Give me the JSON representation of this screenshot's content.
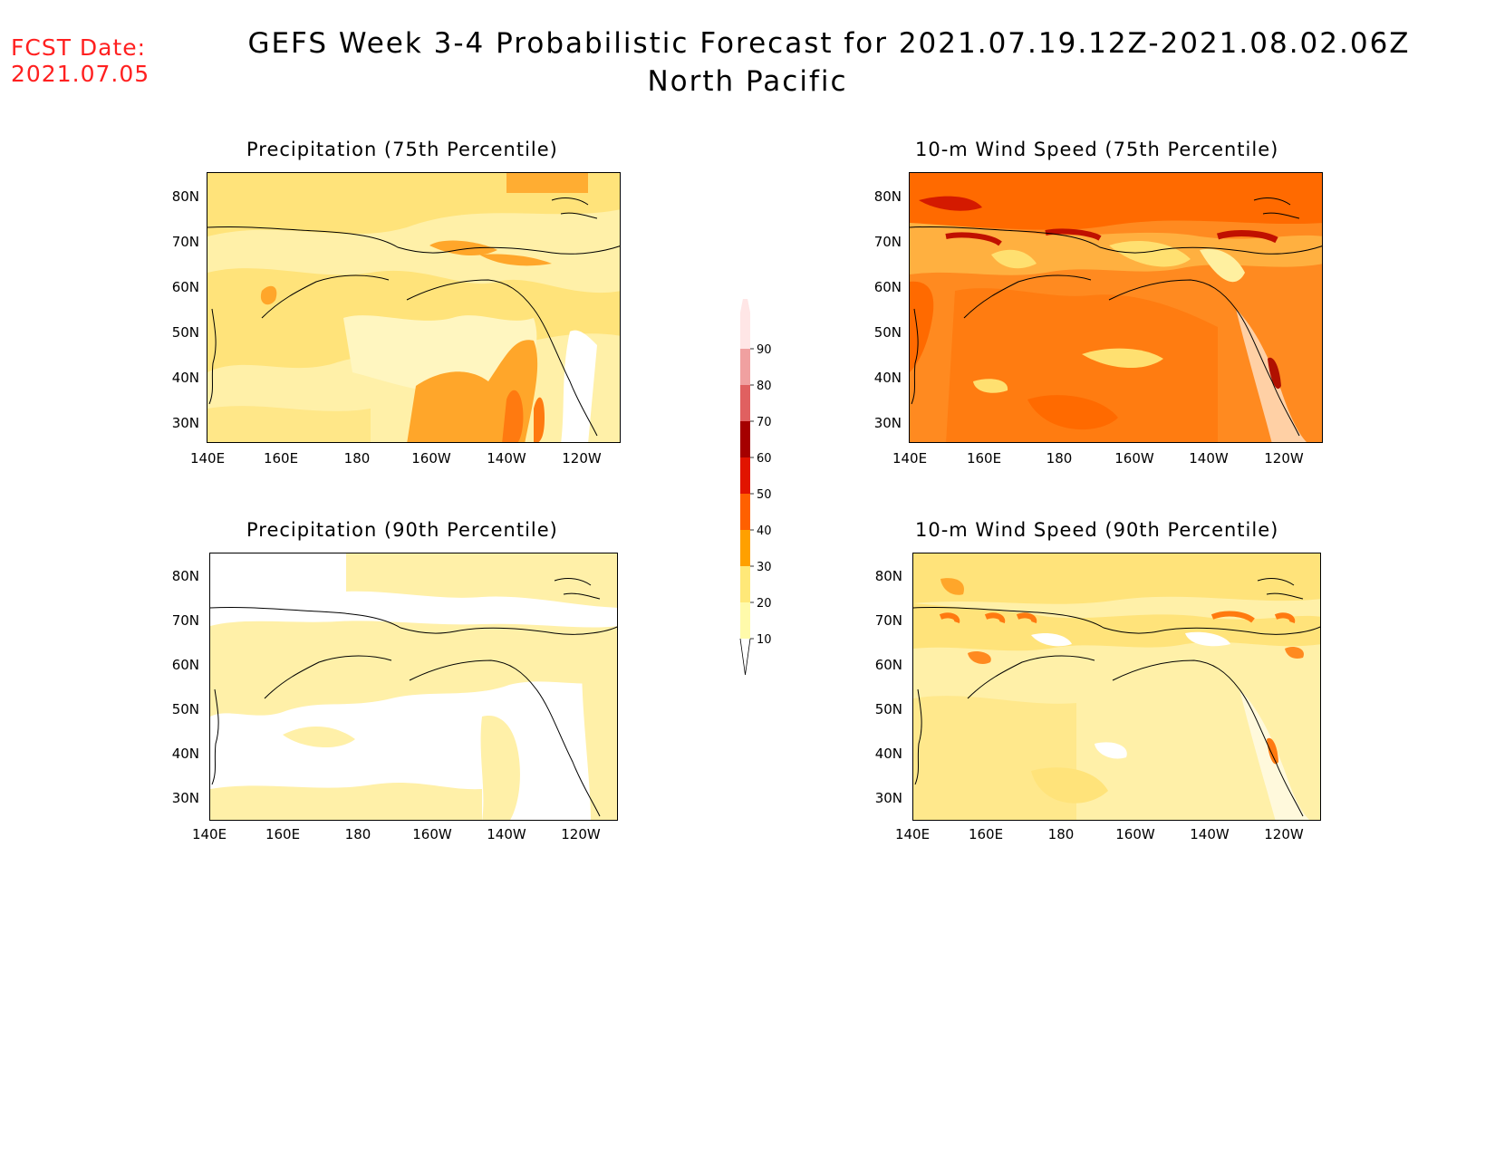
{
  "header": {
    "fcst_label": "FCST Date:",
    "fcst_date": "2021.07.05",
    "title": "GEFS Week 3-4 Probabilistic Forecast for 2021.07.19.12Z-2021.08.02.06Z",
    "subtitle": "North Pacific"
  },
  "axes": {
    "lat_labels": [
      "80N",
      "70N",
      "60N",
      "50N",
      "40N",
      "30N"
    ],
    "lon_labels": [
      "140E",
      "160E",
      "180",
      "160W",
      "140W",
      "120W"
    ]
  },
  "panels": [
    {
      "id": "precip75",
      "title": "Precipitation (75th Percentile)"
    },
    {
      "id": "wind75",
      "title": "10-m Wind Speed (75th Percentile)"
    },
    {
      "id": "precip90",
      "title": "Precipitation (90th Percentile)"
    },
    {
      "id": "wind90",
      "title": "10-m Wind Speed (90th Percentile)"
    }
  ],
  "colorbar": {
    "levels": [
      "10",
      "20",
      "30",
      "40",
      "50",
      "60",
      "70",
      "80",
      "90"
    ],
    "colors": [
      "#fffaaa",
      "#ffe878",
      "#ffa000",
      "#ff6000",
      "#e11400",
      "#a50000",
      "#e06060",
      "#f0a0a0",
      "#ffe6e6"
    ]
  }
}
